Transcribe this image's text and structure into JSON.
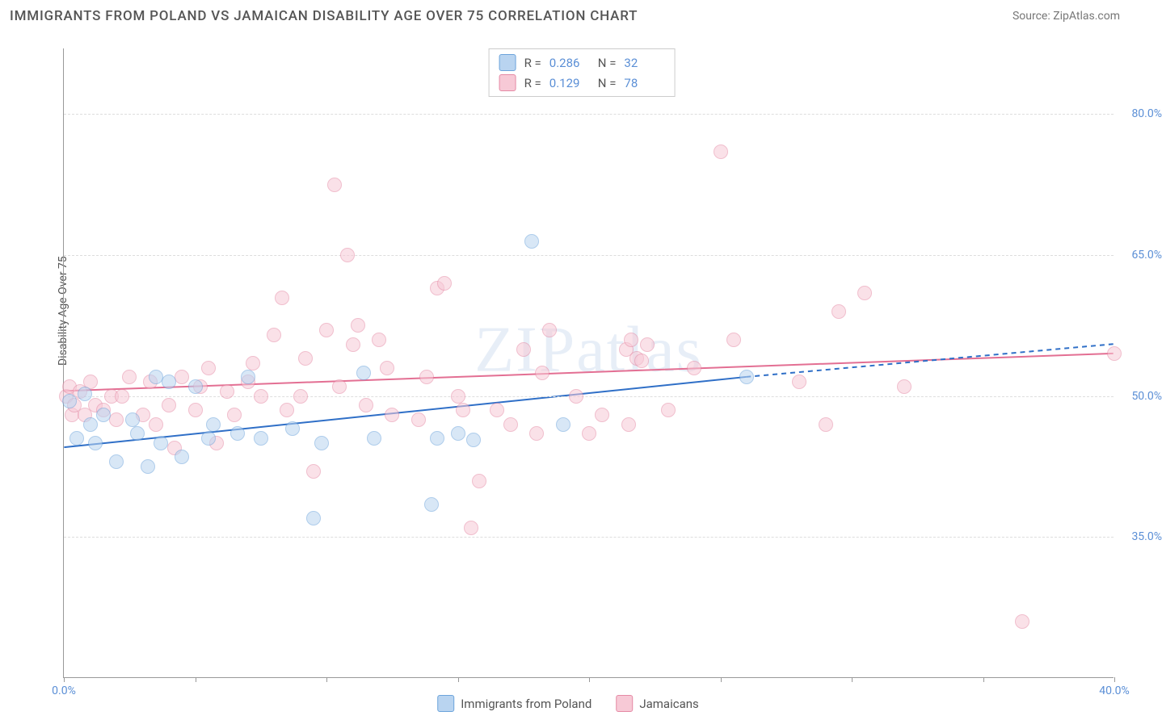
{
  "title": "IMMIGRANTS FROM POLAND VS JAMAICAN DISABILITY AGE OVER 75 CORRELATION CHART",
  "source": "Source: ZipAtlas.com",
  "y_axis_label": "Disability Age Over 75",
  "watermark": "ZIPatlas",
  "chart": {
    "type": "scatter",
    "xlim": [
      0,
      40
    ],
    "ylim": [
      20,
      87
    ],
    "x_ticks": [
      0,
      5,
      10,
      15,
      20,
      25,
      30,
      35,
      40
    ],
    "x_tick_labels": {
      "0": "0.0%",
      "40": "40.0%"
    },
    "y_gridlines": [
      35,
      50,
      65,
      80
    ],
    "y_tick_labels": {
      "35": "35.0%",
      "50": "50.0%",
      "65": "65.0%",
      "80": "80.0%"
    },
    "background_color": "#ffffff",
    "grid_color": "#dddddd",
    "axis_color": "#999999",
    "point_radius": 9,
    "series": [
      {
        "name": "Immigrants from Poland",
        "fill": "#b9d4f0",
        "stroke": "#6ca4db",
        "fill_opacity": 0.55,
        "r_value": "0.286",
        "n_value": "32",
        "trend": {
          "x1": 0,
          "y1": 44.5,
          "x2": 26,
          "y2": 52.0,
          "x2_dash": 40,
          "y2_dash": 55.5,
          "color": "#2f6fc7",
          "width": 2
        },
        "points": [
          [
            0.2,
            49.5
          ],
          [
            0.5,
            45.5
          ],
          [
            0.8,
            50.2
          ],
          [
            1.0,
            47.0
          ],
          [
            1.2,
            45.0
          ],
          [
            1.5,
            48.0
          ],
          [
            2.0,
            43.0
          ],
          [
            2.6,
            47.5
          ],
          [
            2.8,
            46.0
          ],
          [
            3.2,
            42.5
          ],
          [
            3.7,
            45.0
          ],
          [
            3.5,
            52.0
          ],
          [
            4.0,
            51.5
          ],
          [
            4.5,
            43.5
          ],
          [
            5.0,
            51.0
          ],
          [
            5.5,
            45.5
          ],
          [
            5.7,
            47.0
          ],
          [
            6.6,
            46.0
          ],
          [
            7.0,
            52.0
          ],
          [
            7.5,
            45.5
          ],
          [
            8.7,
            46.5
          ],
          [
            9.5,
            37.0
          ],
          [
            9.8,
            45.0
          ],
          [
            11.4,
            52.5
          ],
          [
            11.8,
            45.5
          ],
          [
            14.0,
            38.5
          ],
          [
            14.2,
            45.5
          ],
          [
            15.0,
            46.0
          ],
          [
            15.6,
            45.3
          ],
          [
            17.8,
            66.5
          ],
          [
            19.0,
            47.0
          ],
          [
            26.0,
            52.0
          ]
        ]
      },
      {
        "name": "Jamaicans",
        "fill": "#f7c9d6",
        "stroke": "#e58aa5",
        "fill_opacity": 0.55,
        "r_value": "0.129",
        "n_value": "78",
        "trend": {
          "x1": 0,
          "y1": 50.5,
          "x2": 40,
          "y2": 54.5,
          "color": "#e36f93",
          "width": 2
        },
        "points": [
          [
            0.1,
            50.0
          ],
          [
            0.2,
            51.0
          ],
          [
            0.3,
            48.0
          ],
          [
            0.4,
            49.0
          ],
          [
            0.6,
            50.5
          ],
          [
            0.8,
            48.0
          ],
          [
            1.0,
            51.5
          ],
          [
            1.2,
            49.0
          ],
          [
            1.5,
            48.5
          ],
          [
            1.8,
            50.0
          ],
          [
            2.0,
            47.5
          ],
          [
            2.2,
            50.0
          ],
          [
            2.5,
            52.0
          ],
          [
            3.0,
            48.0
          ],
          [
            3.3,
            51.5
          ],
          [
            3.5,
            47.0
          ],
          [
            4.0,
            49.0
          ],
          [
            4.2,
            44.5
          ],
          [
            4.5,
            52.0
          ],
          [
            5.0,
            48.5
          ],
          [
            5.2,
            51.0
          ],
          [
            5.5,
            53.0
          ],
          [
            5.8,
            45.0
          ],
          [
            6.2,
            50.5
          ],
          [
            6.5,
            48.0
          ],
          [
            7.0,
            51.5
          ],
          [
            7.2,
            53.5
          ],
          [
            7.5,
            50.0
          ],
          [
            8.0,
            56.5
          ],
          [
            8.3,
            60.5
          ],
          [
            8.5,
            48.5
          ],
          [
            9.0,
            50.0
          ],
          [
            9.2,
            54.0
          ],
          [
            9.5,
            42.0
          ],
          [
            10.0,
            57.0
          ],
          [
            10.3,
            72.5
          ],
          [
            10.5,
            51.0
          ],
          [
            10.8,
            65.0
          ],
          [
            11.0,
            55.5
          ],
          [
            11.2,
            57.5
          ],
          [
            11.5,
            49.0
          ],
          [
            12.0,
            56.0
          ],
          [
            12.3,
            53.0
          ],
          [
            12.5,
            48.0
          ],
          [
            13.5,
            47.5
          ],
          [
            13.8,
            52.0
          ],
          [
            14.2,
            61.5
          ],
          [
            14.5,
            62.0
          ],
          [
            15.0,
            50.0
          ],
          [
            15.2,
            48.5
          ],
          [
            15.5,
            36.0
          ],
          [
            15.8,
            41.0
          ],
          [
            16.5,
            48.5
          ],
          [
            17.0,
            47.0
          ],
          [
            17.5,
            55.0
          ],
          [
            18.0,
            46.0
          ],
          [
            18.2,
            52.5
          ],
          [
            18.5,
            57.0
          ],
          [
            19.5,
            50.0
          ],
          [
            20.0,
            46.0
          ],
          [
            20.5,
            48.0
          ],
          [
            21.4,
            55.0
          ],
          [
            21.6,
            56.0
          ],
          [
            21.5,
            47.0
          ],
          [
            21.8,
            54.0
          ],
          [
            22.0,
            53.8
          ],
          [
            22.2,
            55.5
          ],
          [
            23.0,
            48.5
          ],
          [
            24.0,
            53.0
          ],
          [
            25.0,
            76.0
          ],
          [
            25.5,
            56.0
          ],
          [
            28.0,
            51.5
          ],
          [
            29.0,
            47.0
          ],
          [
            29.5,
            59.0
          ],
          [
            30.5,
            61.0
          ],
          [
            32.0,
            51.0
          ],
          [
            36.5,
            26.0
          ],
          [
            40.0,
            54.5
          ]
        ]
      }
    ]
  },
  "legend": {
    "r_label": "R =",
    "n_label": "N ="
  }
}
